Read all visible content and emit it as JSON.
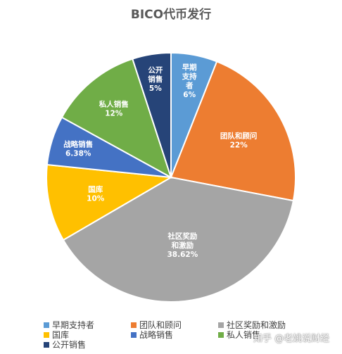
{
  "chart_data": {
    "type": "pie",
    "title": "BICO代币发行",
    "slices": [
      {
        "name": "早期支持者",
        "label_lines": [
          "早期",
          "支持",
          "者"
        ],
        "value": 6,
        "value_label": "6%",
        "color": "#5b9bd5"
      },
      {
        "name": "团队和顾问",
        "label_lines": [
          "团队和顾问"
        ],
        "value": 22,
        "value_label": "22%",
        "color": "#ed7d31"
      },
      {
        "name": "社区奖励和激励",
        "label_lines": [
          "社区奖励",
          "和激励"
        ],
        "value": 38.62,
        "value_label": "38.62%",
        "color": "#a5a5a5"
      },
      {
        "name": "国库",
        "label_lines": [
          "国库"
        ],
        "value": 10,
        "value_label": "10%",
        "color": "#ffc000"
      },
      {
        "name": "战略销售",
        "label_lines": [
          "战略销售"
        ],
        "value": 6.38,
        "value_label": "6.38%",
        "color": "#4472c4"
      },
      {
        "name": "私人销售",
        "label_lines": [
          "私人销售"
        ],
        "value": 12,
        "value_label": "12%",
        "color": "#70ad47"
      },
      {
        "name": "公开销售",
        "label_lines": [
          "公开",
          "销售"
        ],
        "value": 5,
        "value_label": "5%",
        "color": "#264478"
      }
    ],
    "legend_position": "bottom"
  },
  "watermark": "知乎 @老姚说财经"
}
